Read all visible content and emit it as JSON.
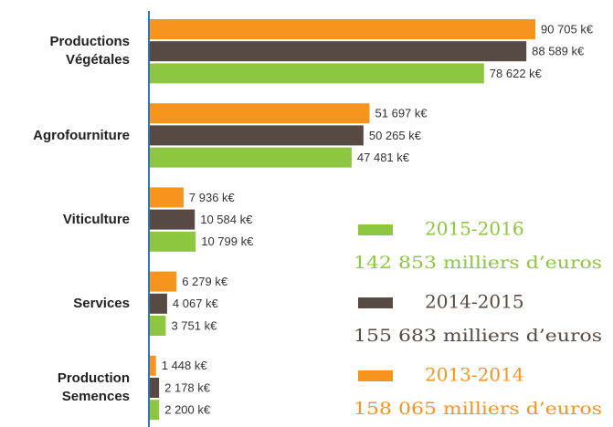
{
  "chart_data": {
    "type": "hbar",
    "categories": [
      "Productions Végétales",
      "Agrofourniture",
      "Viticulture",
      "Services",
      "Production Semences"
    ],
    "series": [
      {
        "name": "2013-2014",
        "color": "#f7941d",
        "total": "158 065 milliers d’euros",
        "values": [
          90705,
          51697,
          7936,
          6279,
          1448
        ],
        "value_labels": [
          "90 705 k€",
          "51 697 k€",
          "7 936 k€",
          "6 279 k€",
          "1 448 k€"
        ]
      },
      {
        "name": "2014-2015",
        "color": "#574a42",
        "total": "155 683 milliers d’euros",
        "values": [
          88589,
          50265,
          10584,
          4067,
          2178
        ],
        "value_labels": [
          "88 589 k€",
          "50 265 k€",
          "10 584 k€",
          "4 067 k€",
          "2 178 k€"
        ]
      },
      {
        "name": "2015-2016",
        "color": "#8dc63f",
        "total": "142 853 milliers d’euros",
        "values": [
          78622,
          47481,
          10799,
          3751,
          2200
        ],
        "value_labels": [
          "78 622 k€",
          "47 481 k€",
          "10 799 k€",
          "3 751 k€",
          "2 200 k€"
        ]
      }
    ]
  }
}
